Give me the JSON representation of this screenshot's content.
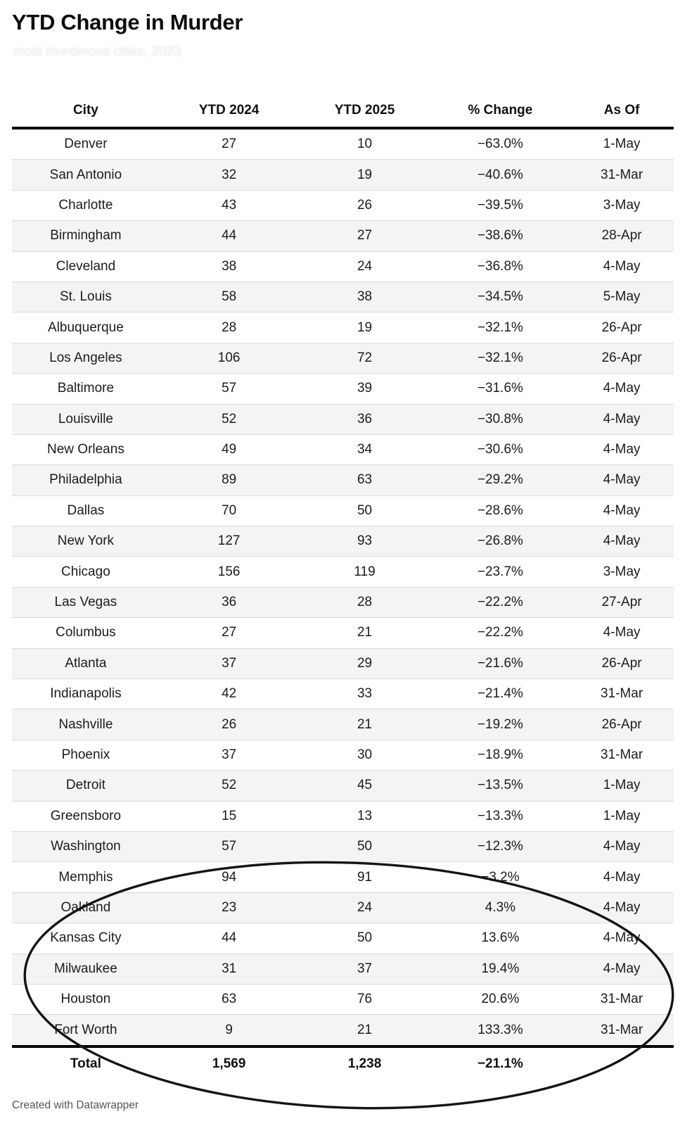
{
  "title": "YTD Change in Murder",
  "subtitle_faded": "most murderous cities, 2023",
  "chart_data": {
    "type": "table",
    "title": "YTD Change in Murder",
    "columns": [
      "City",
      "YTD 2024",
      "YTD 2025",
      "% Change",
      "As Of"
    ],
    "rows": [
      [
        "Denver",
        "27",
        "10",
        "−63.0%",
        "1-May"
      ],
      [
        "San Antonio",
        "32",
        "19",
        "−40.6%",
        "31-Mar"
      ],
      [
        "Charlotte",
        "43",
        "26",
        "−39.5%",
        "3-May"
      ],
      [
        "Birmingham",
        "44",
        "27",
        "−38.6%",
        "28-Apr"
      ],
      [
        "Cleveland",
        "38",
        "24",
        "−36.8%",
        "4-May"
      ],
      [
        "St. Louis",
        "58",
        "38",
        "−34.5%",
        "5-May"
      ],
      [
        "Albuquerque",
        "28",
        "19",
        "−32.1%",
        "26-Apr"
      ],
      [
        "Los Angeles",
        "106",
        "72",
        "−32.1%",
        "26-Apr"
      ],
      [
        "Baltimore",
        "57",
        "39",
        "−31.6%",
        "4-May"
      ],
      [
        "Louisville",
        "52",
        "36",
        "−30.8%",
        "4-May"
      ],
      [
        "New Orleans",
        "49",
        "34",
        "−30.6%",
        "4-May"
      ],
      [
        "Philadelphia",
        "89",
        "63",
        "−29.2%",
        "4-May"
      ],
      [
        "Dallas",
        "70",
        "50",
        "−28.6%",
        "4-May"
      ],
      [
        "New York",
        "127",
        "93",
        "−26.8%",
        "4-May"
      ],
      [
        "Chicago",
        "156",
        "119",
        "−23.7%",
        "3-May"
      ],
      [
        "Las Vegas",
        "36",
        "28",
        "−22.2%",
        "27-Apr"
      ],
      [
        "Columbus",
        "27",
        "21",
        "−22.2%",
        "4-May"
      ],
      [
        "Atlanta",
        "37",
        "29",
        "−21.6%",
        "26-Apr"
      ],
      [
        "Indianapolis",
        "42",
        "33",
        "−21.4%",
        "31-Mar"
      ],
      [
        "Nashville",
        "26",
        "21",
        "−19.2%",
        "26-Apr"
      ],
      [
        "Phoenix",
        "37",
        "30",
        "−18.9%",
        "31-Mar"
      ],
      [
        "Detroit",
        "52",
        "45",
        "−13.5%",
        "1-May"
      ],
      [
        "Greensboro",
        "15",
        "13",
        "−13.3%",
        "1-May"
      ],
      [
        "Washington",
        "57",
        "50",
        "−12.3%",
        "4-May"
      ],
      [
        "Memphis",
        "94",
        "91",
        "−3.2%",
        "4-May"
      ],
      [
        "Oakland",
        "23",
        "24",
        "4.3%",
        "4-May"
      ],
      [
        "Kansas City",
        "44",
        "50",
        "13.6%",
        "4-May"
      ],
      [
        "Milwaukee",
        "31",
        "37",
        "19.4%",
        "4-May"
      ],
      [
        "Houston",
        "63",
        "76",
        "20.6%",
        "31-Mar"
      ],
      [
        "Fort Worth",
        "9",
        "21",
        "133.3%",
        "31-Mar"
      ]
    ],
    "total": {
      "label": "Total",
      "ytd_2024": "1,569",
      "ytd_2025": "1,238",
      "pct_change": "−21.1%",
      "as_of": ""
    },
    "layout_hints": {
      "zebra_striping": true,
      "all_columns_centered": true
    }
  },
  "annotation": {
    "shape": "hand-drawn ellipse",
    "color": "#141414",
    "circled_rows": [
      "Memphis",
      "Oakland",
      "Kansas City",
      "Milwaukee",
      "Houston",
      "Fort Worth",
      "Total"
    ]
  },
  "footer": {
    "credit": "Created with Datawrapper"
  },
  "colors": {
    "background": "#ffffff",
    "row_alt": "#f4f4f4",
    "row_divider": "#d9d9d9",
    "table_rule": "#000000",
    "text": "#1a1a1a",
    "credit_text": "#565656"
  }
}
